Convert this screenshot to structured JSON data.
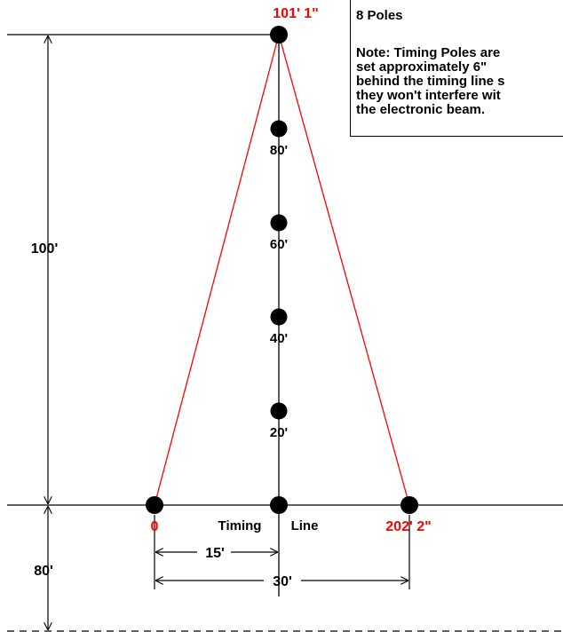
{
  "apex_label": "101' 1\"",
  "left_label": "0",
  "right_label": "202' 2\"",
  "distance_labels": [
    "80'",
    "60'",
    "40'",
    "20'"
  ],
  "timing_line": {
    "word1": "Timing",
    "word2": "Line"
  },
  "dimensions": {
    "height_100": "100'",
    "height_80": "80'",
    "width_15": "15'",
    "width_30": "30'"
  },
  "note": {
    "title": "8 Poles",
    "lines": [
      "Note: Timing Poles are",
      "set approximately 6\"",
      "behind the timing line s",
      "they won't interfere wit",
      "the electronic beam."
    ]
  },
  "colors": {
    "red": "#ff0000",
    "black": "#000000"
  }
}
